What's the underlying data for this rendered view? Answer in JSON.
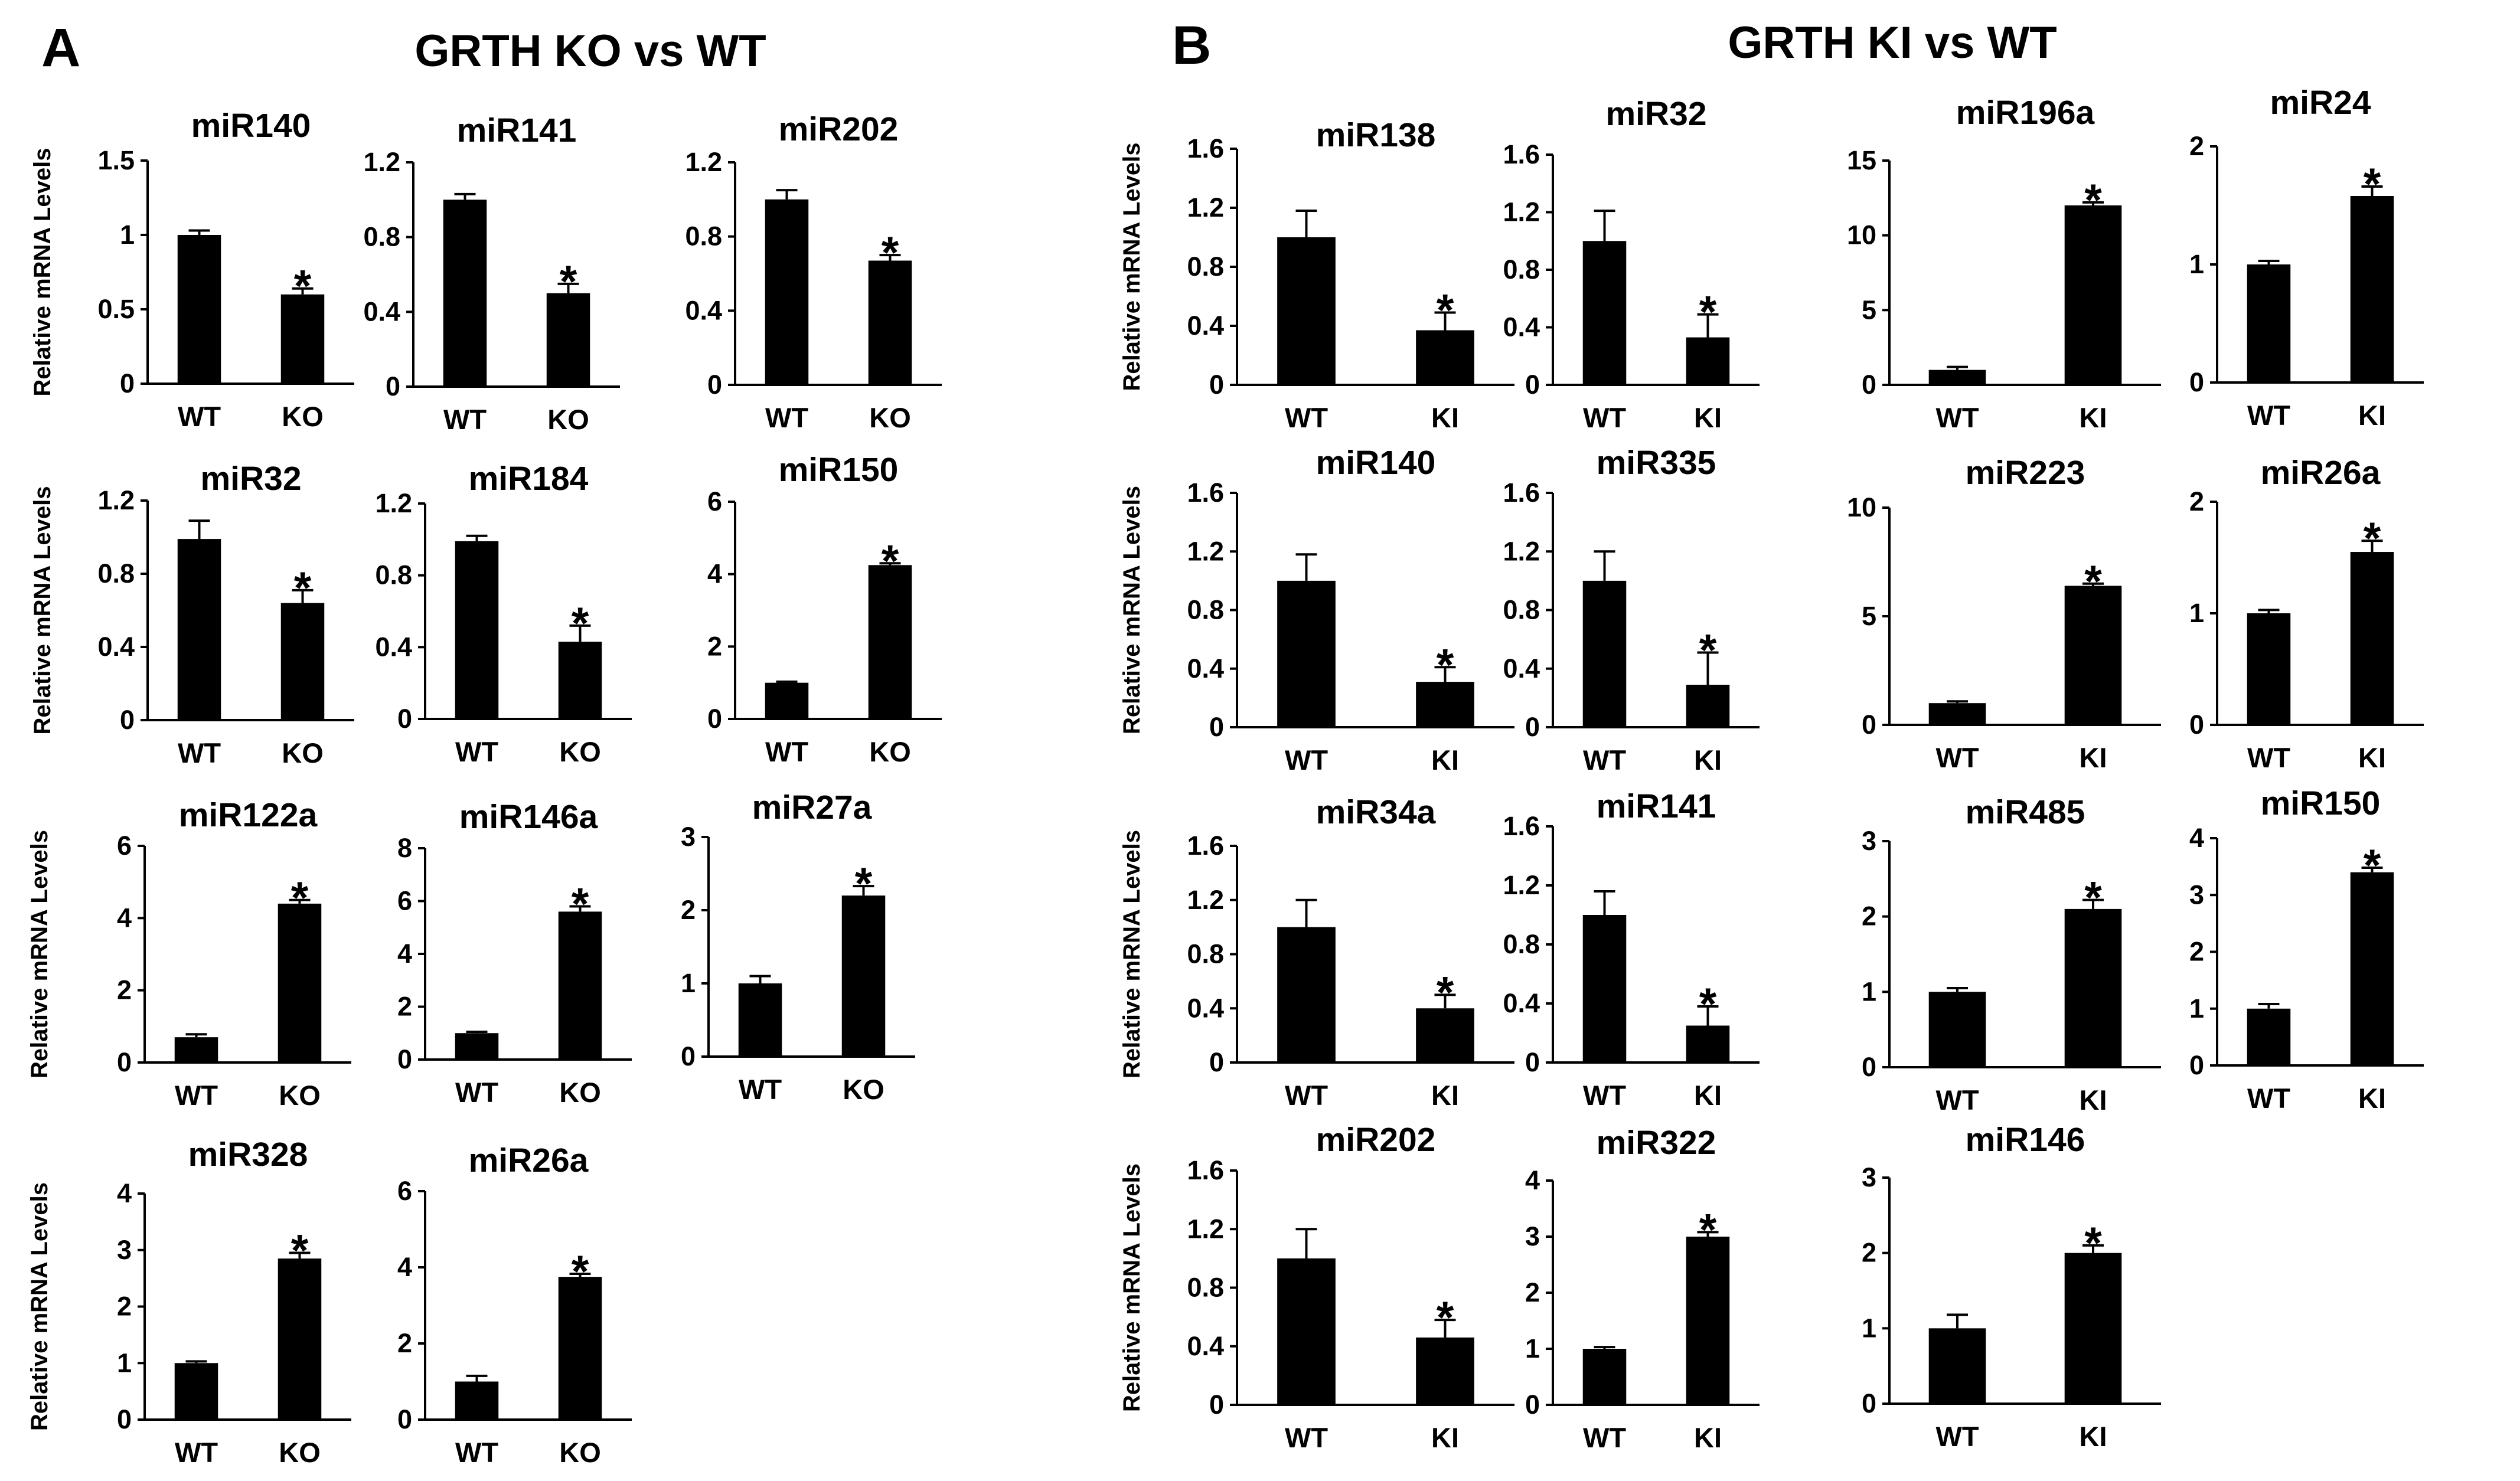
{
  "panels": [
    {
      "letter": "A",
      "title": "GRTH KO vs WT"
    },
    {
      "letter": "B",
      "title": "GRTH KI vs WT"
    }
  ],
  "colors": {
    "bar": "#000000",
    "axis": "#000000",
    "background": "#ffffff"
  },
  "chart_data": [
    {
      "type": "bar",
      "panel": "A",
      "title": "miR140",
      "ylabel": "Relative mRNA Levels",
      "categories": [
        "WT",
        "KO"
      ],
      "values": [
        1.0,
        0.6
      ],
      "errors": [
        0.03,
        0.04
      ],
      "yticks": [
        "0",
        "0.5",
        "1",
        "1.5"
      ],
      "ylim": [
        0,
        1.5
      ],
      "significance": [
        "",
        "*"
      ]
    },
    {
      "type": "bar",
      "panel": "A",
      "title": "miR141",
      "ylabel": "",
      "categories": [
        "WT",
        "KO"
      ],
      "values": [
        1.0,
        0.5
      ],
      "errors": [
        0.03,
        0.05
      ],
      "yticks": [
        "0",
        "0.4",
        "0.8",
        "1.2"
      ],
      "ylim": [
        0,
        1.2
      ],
      "significance": [
        "",
        "*"
      ]
    },
    {
      "type": "bar",
      "panel": "A",
      "title": "miR202",
      "ylabel": "",
      "categories": [
        "WT",
        "KO"
      ],
      "values": [
        1.0,
        0.67
      ],
      "errors": [
        0.05,
        0.03
      ],
      "yticks": [
        "0",
        "0.4",
        "0.8",
        "1.2"
      ],
      "ylim": [
        0,
        1.2
      ],
      "significance": [
        "",
        "*"
      ]
    },
    {
      "type": "bar",
      "panel": "A",
      "title": "miR32",
      "ylabel": "Relative mRNA Levels",
      "categories": [
        "WT",
        "KO"
      ],
      "values": [
        0.99,
        0.64
      ],
      "errors": [
        0.1,
        0.07
      ],
      "yticks": [
        "0",
        "0.4",
        "0.8",
        "1.2"
      ],
      "ylim": [
        0,
        1.2
      ],
      "significance": [
        "",
        "*"
      ]
    },
    {
      "type": "bar",
      "panel": "A",
      "title": "miR184",
      "ylabel": "",
      "categories": [
        "WT",
        "KO"
      ],
      "values": [
        0.99,
        0.43
      ],
      "errors": [
        0.03,
        0.09
      ],
      "yticks": [
        "0",
        "0.4",
        "0.8",
        "1.2"
      ],
      "ylim": [
        0,
        1.2
      ],
      "significance": [
        "",
        "*"
      ]
    },
    {
      "type": "bar",
      "panel": "A",
      "title": "miR150",
      "ylabel": "",
      "categories": [
        "WT",
        "KO"
      ],
      "values": [
        1.0,
        4.25
      ],
      "errors": [
        0.03,
        0.05
      ],
      "yticks": [
        "0",
        "2",
        "4",
        "6"
      ],
      "ylim": [
        0,
        6
      ],
      "significance": [
        "",
        "*"
      ]
    },
    {
      "type": "bar",
      "panel": "A",
      "title": "miR122a",
      "ylabel": "Relative mRNA Levels",
      "categories": [
        "WT",
        "KO"
      ],
      "values": [
        0.7,
        4.4
      ],
      "errors": [
        0.08,
        0.1
      ],
      "yticks": [
        "0",
        "2",
        "4",
        "6"
      ],
      "ylim": [
        0,
        6
      ],
      "significance": [
        "",
        "*"
      ]
    },
    {
      "type": "bar",
      "panel": "A",
      "title": "miR146a",
      "ylabel": "",
      "categories": [
        "WT",
        "KO"
      ],
      "values": [
        1.0,
        5.6
      ],
      "errors": [
        0.05,
        0.2
      ],
      "yticks": [
        "0",
        "2",
        "4",
        "6",
        "8"
      ],
      "ylim": [
        0,
        8
      ],
      "significance": [
        "",
        "*"
      ]
    },
    {
      "type": "bar",
      "panel": "A",
      "title": "miR27a",
      "ylabel": "",
      "categories": [
        "WT",
        "KO"
      ],
      "values": [
        1.0,
        2.2
      ],
      "errors": [
        0.1,
        0.13
      ],
      "yticks": [
        "0",
        "1",
        "2",
        "3"
      ],
      "ylim": [
        0,
        3
      ],
      "significance": [
        "",
        "*"
      ]
    },
    {
      "type": "bar",
      "panel": "A",
      "title": "miR328",
      "ylabel": "Relative mRNA Levels",
      "categories": [
        "WT",
        "KO"
      ],
      "values": [
        1.0,
        2.85
      ],
      "errors": [
        0.03,
        0.1
      ],
      "yticks": [
        "0",
        "1",
        "2",
        "3",
        "4"
      ],
      "ylim": [
        0,
        4
      ],
      "significance": [
        "",
        "*"
      ]
    },
    {
      "type": "bar",
      "panel": "A",
      "title": "miR26a",
      "ylabel": "",
      "categories": [
        "WT",
        "KO"
      ],
      "values": [
        1.0,
        3.75
      ],
      "errors": [
        0.15,
        0.08
      ],
      "yticks": [
        "0",
        "2",
        "4",
        "6"
      ],
      "ylim": [
        0,
        6
      ],
      "significance": [
        "",
        "*"
      ]
    },
    {
      "type": "bar",
      "panel": "B",
      "title": "miR138",
      "ylabel": "Relative mRNA Levels",
      "categories": [
        "WT",
        "KI"
      ],
      "values": [
        1.0,
        0.37
      ],
      "errors": [
        0.18,
        0.12
      ],
      "yticks": [
        "0",
        "0.4",
        "0.8",
        "1.2",
        "1.6"
      ],
      "ylim": [
        0,
        1.6
      ],
      "significance": [
        "",
        "*"
      ]
    },
    {
      "type": "bar",
      "panel": "B",
      "title": "miR32",
      "ylabel": "",
      "categories": [
        "WT",
        "KI"
      ],
      "values": [
        1.0,
        0.33
      ],
      "errors": [
        0.21,
        0.16
      ],
      "yticks": [
        "0",
        "0.4",
        "0.8",
        "1.2",
        "1.6"
      ],
      "ylim": [
        0,
        1.6
      ],
      "significance": [
        "",
        "*"
      ]
    },
    {
      "type": "bar",
      "panel": "B",
      "title": "miR196a",
      "ylabel": "",
      "categories": [
        "WT",
        "KI"
      ],
      "values": [
        1.0,
        12.0
      ],
      "errors": [
        0.2,
        0.2
      ],
      "yticks": [
        "0",
        "5",
        "10",
        "15"
      ],
      "ylim": [
        0,
        15
      ],
      "significance": [
        "",
        "*"
      ]
    },
    {
      "type": "bar",
      "panel": "B",
      "title": "miR24",
      "ylabel": "",
      "categories": [
        "WT",
        "KI"
      ],
      "values": [
        1.0,
        1.58
      ],
      "errors": [
        0.03,
        0.08
      ],
      "yticks": [
        "0",
        "1",
        "2"
      ],
      "ylim": [
        0,
        2
      ],
      "significance": [
        "",
        "*"
      ]
    },
    {
      "type": "bar",
      "panel": "B",
      "title": "miR140",
      "ylabel": "Relative mRNA Levels",
      "categories": [
        "WT",
        "KI"
      ],
      "values": [
        1.0,
        0.31
      ],
      "errors": [
        0.18,
        0.1
      ],
      "yticks": [
        "0",
        "0.4",
        "0.8",
        "1.2",
        "1.6"
      ],
      "ylim": [
        0,
        1.6
      ],
      "significance": [
        "",
        "*"
      ]
    },
    {
      "type": "bar",
      "panel": "B",
      "title": "miR335",
      "ylabel": "",
      "categories": [
        "WT",
        "KI"
      ],
      "values": [
        1.0,
        0.29
      ],
      "errors": [
        0.2,
        0.22
      ],
      "yticks": [
        "0",
        "0.4",
        "0.8",
        "1.2",
        "1.6"
      ],
      "ylim": [
        0,
        1.6
      ],
      "significance": [
        "",
        "*"
      ]
    },
    {
      "type": "bar",
      "panel": "B",
      "title": "miR223",
      "ylabel": "",
      "categories": [
        "WT",
        "KI"
      ],
      "values": [
        1.0,
        6.4
      ],
      "errors": [
        0.08,
        0.1
      ],
      "yticks": [
        "0",
        "5",
        "10"
      ],
      "ylim": [
        0,
        10
      ],
      "significance": [
        "",
        "*"
      ]
    },
    {
      "type": "bar",
      "panel": "B",
      "title": "miR26a",
      "ylabel": "",
      "categories": [
        "WT",
        "KI"
      ],
      "values": [
        1.0,
        1.55
      ],
      "errors": [
        0.03,
        0.1
      ],
      "yticks": [
        "0",
        "1",
        "2"
      ],
      "ylim": [
        0,
        2
      ],
      "significance": [
        "",
        "*"
      ]
    },
    {
      "type": "bar",
      "panel": "B",
      "title": "miR34a",
      "ylabel": "Relative mRNA Levels",
      "categories": [
        "WT",
        "KI"
      ],
      "values": [
        1.0,
        0.4
      ],
      "errors": [
        0.2,
        0.1
      ],
      "yticks": [
        "0",
        "0.4",
        "0.8",
        "1.2",
        "1.6"
      ],
      "ylim": [
        0,
        1.6
      ],
      "significance": [
        "",
        "*"
      ]
    },
    {
      "type": "bar",
      "panel": "B",
      "title": "miR141",
      "ylabel": "",
      "categories": [
        "WT",
        "KI"
      ],
      "values": [
        1.0,
        0.25
      ],
      "errors": [
        0.16,
        0.13
      ],
      "yticks": [
        "0",
        "0.4",
        "0.8",
        "1.2",
        "1.6"
      ],
      "ylim": [
        0,
        1.6
      ],
      "significance": [
        "",
        "*"
      ]
    },
    {
      "type": "bar",
      "panel": "B",
      "title": "miR485",
      "ylabel": "",
      "categories": [
        "WT",
        "KI"
      ],
      "values": [
        1.0,
        2.1
      ],
      "errors": [
        0.05,
        0.12
      ],
      "yticks": [
        "0",
        "1",
        "2",
        "3"
      ],
      "ylim": [
        0,
        3
      ],
      "significance": [
        "",
        "*"
      ]
    },
    {
      "type": "bar",
      "panel": "B",
      "title": "miR150",
      "ylabel": "",
      "categories": [
        "WT",
        "KI"
      ],
      "values": [
        1.0,
        3.4
      ],
      "errors": [
        0.08,
        0.08
      ],
      "yticks": [
        "0",
        "1",
        "2",
        "3",
        "4"
      ],
      "ylim": [
        0,
        4
      ],
      "significance": [
        "",
        "*"
      ]
    },
    {
      "type": "bar",
      "panel": "B",
      "title": "miR202",
      "ylabel": "Relative mRNA Levels",
      "categories": [
        "WT",
        "KI"
      ],
      "values": [
        1.0,
        0.46
      ],
      "errors": [
        0.2,
        0.12
      ],
      "yticks": [
        "0",
        "0.4",
        "0.8",
        "1.2",
        "1.6"
      ],
      "ylim": [
        0,
        1.6
      ],
      "significance": [
        "",
        "*"
      ]
    },
    {
      "type": "bar",
      "panel": "B",
      "title": "miR322",
      "ylabel": "",
      "categories": [
        "WT",
        "KI"
      ],
      "values": [
        1.0,
        3.0
      ],
      "errors": [
        0.03,
        0.08
      ],
      "yticks": [
        "0",
        "1",
        "2",
        "3",
        "4"
      ],
      "ylim": [
        0,
        4
      ],
      "significance": [
        "",
        "*"
      ]
    },
    {
      "type": "bar",
      "panel": "B",
      "title": "miR146",
      "ylabel": "",
      "categories": [
        "WT",
        "KI"
      ],
      "values": [
        1.0,
        2.0
      ],
      "errors": [
        0.18,
        0.1
      ],
      "yticks": [
        "0",
        "1",
        "2",
        "3"
      ],
      "ylim": [
        0,
        3
      ],
      "significance": [
        "",
        "*"
      ]
    }
  ]
}
